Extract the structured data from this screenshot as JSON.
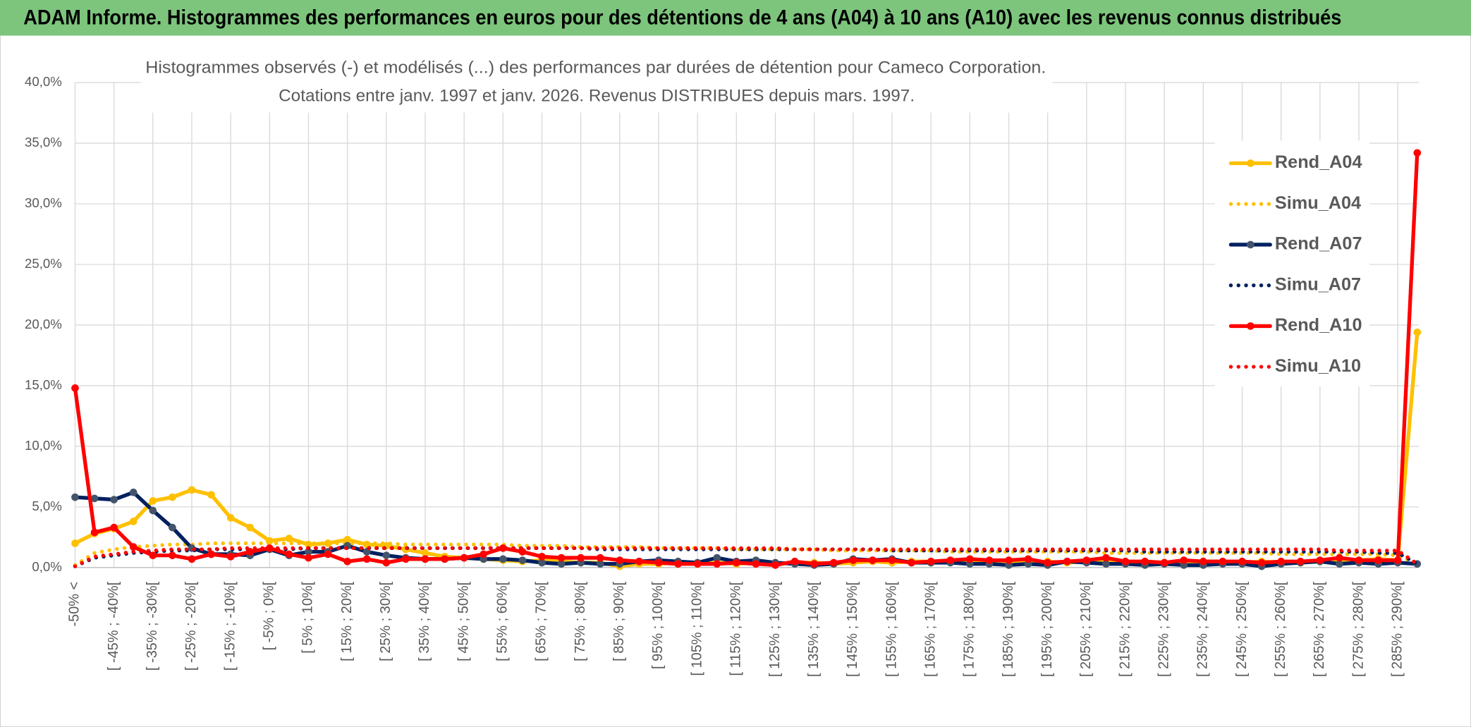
{
  "chart_data": {
    "type": "line",
    "title": "ADAM Informe. Histogrammes des performances en euros pour des détentions de 4 ans (A04) à 10 ans (A10) avec les revenus connus distribués",
    "subtitle": [
      "Histogrammes observés (-) et modélisés (...) des performances par durées de détention pour Cameco Corporation.",
      "Cotations entre janv. 1997 et janv. 2026. Revenus DISTRIBUES depuis mars. 1997."
    ],
    "categories": [
      "-50% <",
      null,
      "[ -45% ; -40%[",
      null,
      "[ -35% ; -30%[",
      null,
      "[ -25% ; -20%[",
      null,
      "[ -15% ; -10%[",
      null,
      "[ -5% ; 0%[",
      null,
      "[ 5% ; 10%[",
      null,
      "[ 15% ; 20%[",
      null,
      "[ 25% ; 30%[",
      null,
      "[ 35% ; 40%[",
      null,
      "[ 45% ; 50%[",
      null,
      "[ 55% ; 60%[",
      null,
      "[ 65% ; 70%[",
      null,
      "[ 75% ; 80%[",
      null,
      "[ 85% ; 90%[",
      null,
      "[ 95% ; 100%[",
      null,
      "[ 105% ; 110%[",
      null,
      "[ 115% ; 120%[",
      null,
      "[ 125% ; 130%[",
      null,
      "[ 135% ; 140%[",
      null,
      "[ 145% ; 150%[",
      null,
      "[ 155% ; 160%[",
      null,
      "[ 165% ; 170%[",
      null,
      "[ 175% ; 180%[",
      null,
      "[ 185% ; 190%[",
      null,
      "[ 195% ; 200%[",
      null,
      "[ 205% ; 210%[",
      null,
      "[ 215% ; 220%[",
      null,
      "[ 225% ; 230%[",
      null,
      "[ 235% ; 240%[",
      null,
      "[ 245% ; 250%[",
      null,
      "[ 255% ; 260%[",
      null,
      "[ 265% ; 270%[",
      null,
      "[ 275% ; 280%[",
      null,
      "[ 285% ; 290%[",
      null
    ],
    "ylim": [
      0,
      40
    ],
    "yticks": [
      {
        "value": 0,
        "label": "0,0%"
      },
      {
        "value": 5,
        "label": "5,0%"
      },
      {
        "value": 10,
        "label": "10,0%"
      },
      {
        "value": 15,
        "label": "15,0%"
      },
      {
        "value": 20,
        "label": "20,0%"
      },
      {
        "value": 25,
        "label": "25,0%"
      },
      {
        "value": 30,
        "label": "30,0%"
      },
      {
        "value": 35,
        "label": "35,0%"
      },
      {
        "value": 40,
        "label": "40,0%"
      }
    ],
    "grid": true,
    "legend": "right",
    "series": [
      {
        "name": "Rend_A04",
        "color": "#ffc000",
        "marker_color": "#ffc000",
        "line_style": "solid",
        "values": [
          2.0,
          2.8,
          3.2,
          3.8,
          5.5,
          5.8,
          6.4,
          6.0,
          4.1,
          3.3,
          2.2,
          2.4,
          1.9,
          2.0,
          2.3,
          1.9,
          1.8,
          1.5,
          1.2,
          0.9,
          0.8,
          0.7,
          0.6,
          0.5,
          0.6,
          0.5,
          0.4,
          0.4,
          0.1,
          0.3,
          0.3,
          0.4,
          0.3,
          0.4,
          0.3,
          0.4,
          0.3,
          0.4,
          0.4,
          0.3,
          0.4,
          0.5,
          0.4,
          0.5,
          0.5,
          0.5,
          0.4,
          0.4,
          0.5,
          0.4,
          0.5,
          0.4,
          0.5,
          0.6,
          0.4,
          0.5,
          0.4,
          0.4,
          0.5,
          0.5,
          0.4,
          0.5,
          0.4,
          0.4,
          0.5,
          0.5,
          0.6,
          0.7,
          0.6,
          19.4
        ]
      },
      {
        "name": "Simu_A04",
        "color": "#ffc000",
        "line_style": "dotted",
        "values": [
          0.2,
          1.2,
          1.5,
          1.7,
          1.8,
          1.9,
          1.9,
          2.0,
          2.0,
          2.0,
          2.0,
          2.0,
          2.0,
          2.0,
          2.0,
          2.0,
          2.0,
          1.9,
          1.9,
          1.9,
          1.9,
          1.9,
          1.9,
          1.8,
          1.8,
          1.8,
          1.7,
          1.7,
          1.7,
          1.7,
          1.6,
          1.6,
          1.6,
          1.6,
          1.5,
          1.5,
          1.5,
          1.5,
          1.5,
          1.4,
          1.4,
          1.4,
          1.4,
          1.4,
          1.4,
          1.3,
          1.3,
          1.3,
          1.3,
          1.3,
          1.3,
          1.3,
          1.3,
          1.2,
          1.2,
          1.2,
          1.2,
          1.2,
          1.2,
          1.2,
          1.2,
          1.2,
          1.1,
          1.1,
          1.1,
          1.1,
          1.1,
          1.1,
          1.0,
          0.3
        ]
      },
      {
        "name": "Rend_A07",
        "color": "#002060",
        "marker_color": "#44546a",
        "line_style": "solid",
        "values": [
          5.8,
          5.7,
          5.6,
          6.2,
          4.7,
          3.3,
          1.6,
          1.1,
          1.1,
          1.0,
          1.5,
          1.0,
          1.3,
          1.3,
          1.8,
          1.3,
          1.0,
          0.8,
          0.7,
          0.7,
          0.8,
          0.7,
          0.7,
          0.6,
          0.4,
          0.3,
          0.4,
          0.3,
          0.3,
          0.5,
          0.6,
          0.5,
          0.4,
          0.8,
          0.5,
          0.6,
          0.4,
          0.3,
          0.2,
          0.3,
          0.7,
          0.6,
          0.7,
          0.4,
          0.4,
          0.4,
          0.3,
          0.3,
          0.2,
          0.3,
          0.2,
          0.5,
          0.4,
          0.3,
          0.3,
          0.2,
          0.3,
          0.2,
          0.2,
          0.3,
          0.3,
          0.1,
          0.3,
          0.4,
          0.5,
          0.3,
          0.4,
          0.3,
          0.4,
          0.3
        ]
      },
      {
        "name": "Simu_A07",
        "color": "#002060",
        "line_style": "dotted",
        "values": [
          0.1,
          0.8,
          1.0,
          1.2,
          1.3,
          1.4,
          1.4,
          1.5,
          1.5,
          1.5,
          1.5,
          1.5,
          1.6,
          1.6,
          1.6,
          1.6,
          1.6,
          1.6,
          1.6,
          1.6,
          1.6,
          1.6,
          1.6,
          1.6,
          1.6,
          1.6,
          1.6,
          1.5,
          1.5,
          1.5,
          1.5,
          1.5,
          1.5,
          1.5,
          1.5,
          1.5,
          1.5,
          1.5,
          1.5,
          1.5,
          1.5,
          1.5,
          1.4,
          1.4,
          1.4,
          1.4,
          1.4,
          1.4,
          1.4,
          1.4,
          1.4,
          1.4,
          1.4,
          1.4,
          1.4,
          1.3,
          1.3,
          1.3,
          1.3,
          1.3,
          1.3,
          1.3,
          1.3,
          1.3,
          1.3,
          1.3,
          1.3,
          1.2,
          1.2,
          0.3
        ]
      },
      {
        "name": "Rend_A10",
        "color": "#ff0000",
        "marker_color": "#ff0000",
        "line_style": "solid",
        "values": [
          14.8,
          2.9,
          3.3,
          1.7,
          1.0,
          1.0,
          0.7,
          1.1,
          0.9,
          1.3,
          1.6,
          1.1,
          0.8,
          1.1,
          0.5,
          0.7,
          0.4,
          0.7,
          0.7,
          0.7,
          0.8,
          1.1,
          1.6,
          1.3,
          0.9,
          0.8,
          0.8,
          0.8,
          0.6,
          0.5,
          0.4,
          0.3,
          0.3,
          0.3,
          0.4,
          0.3,
          0.2,
          0.5,
          0.3,
          0.4,
          0.6,
          0.6,
          0.6,
          0.4,
          0.5,
          0.6,
          0.7,
          0.6,
          0.6,
          0.7,
          0.4,
          0.5,
          0.6,
          0.8,
          0.5,
          0.5,
          0.4,
          0.6,
          0.5,
          0.5,
          0.5,
          0.4,
          0.5,
          0.5,
          0.6,
          0.8,
          0.6,
          0.6,
          0.6,
          34.2
        ]
      },
      {
        "name": "Simu_A10",
        "color": "#ff0000",
        "line_style": "dotted",
        "values": [
          0.1,
          0.9,
          1.1,
          1.3,
          1.4,
          1.5,
          1.5,
          1.5,
          1.6,
          1.6,
          1.6,
          1.6,
          1.6,
          1.6,
          1.6,
          1.6,
          1.6,
          1.6,
          1.6,
          1.6,
          1.6,
          1.6,
          1.6,
          1.6,
          1.6,
          1.6,
          1.6,
          1.6,
          1.6,
          1.6,
          1.6,
          1.6,
          1.6,
          1.6,
          1.6,
          1.6,
          1.6,
          1.5,
          1.5,
          1.5,
          1.5,
          1.5,
          1.5,
          1.5,
          1.5,
          1.5,
          1.5,
          1.5,
          1.5,
          1.5,
          1.5,
          1.5,
          1.5,
          1.5,
          1.5,
          1.5,
          1.5,
          1.5,
          1.5,
          1.5,
          1.5,
          1.5,
          1.5,
          1.5,
          1.5,
          1.4,
          1.4,
          1.4,
          1.4,
          0.3
        ]
      }
    ]
  }
}
